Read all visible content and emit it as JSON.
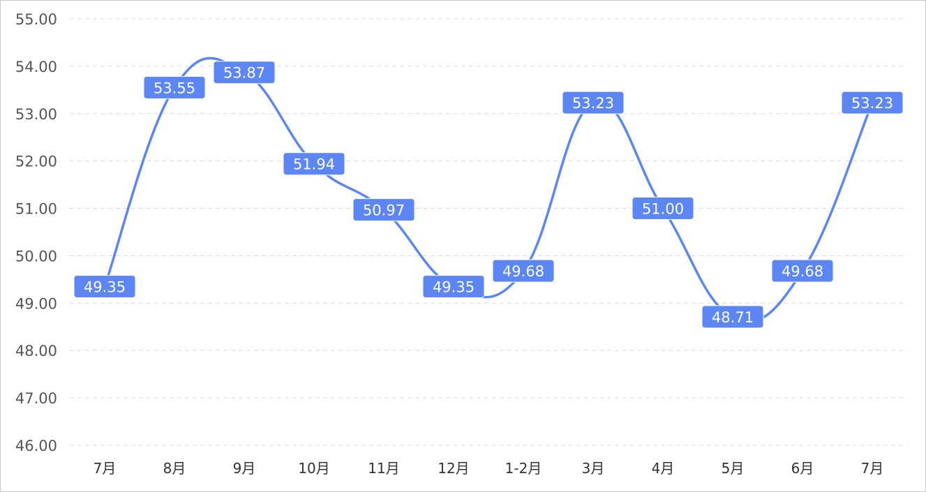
{
  "chart_data": {
    "type": "line",
    "categories": [
      "7月",
      "8月",
      "9月",
      "10月",
      "11月",
      "12月",
      "1-2月",
      "3月",
      "4月",
      "5月",
      "6月",
      "7月"
    ],
    "values": [
      49.35,
      53.55,
      53.87,
      51.94,
      50.97,
      49.35,
      49.68,
      53.23,
      51.0,
      48.71,
      49.68,
      53.23
    ],
    "data_labels": [
      "49.35",
      "53.55",
      "53.87",
      "51.94",
      "50.97",
      "49.35",
      "49.68",
      "53.23",
      "51.00",
      "48.71",
      "49.68",
      "53.23"
    ],
    "yticks": [
      "46.00",
      "47.00",
      "48.00",
      "49.00",
      "50.00",
      "51.00",
      "52.00",
      "53.00",
      "54.00",
      "55.00"
    ],
    "ylim": [
      46,
      55
    ],
    "smooth": true,
    "grid": true,
    "line_color": "#5b86f3",
    "label_bg_color": "#5b86f3",
    "title": "",
    "xlabel": "",
    "ylabel": ""
  }
}
